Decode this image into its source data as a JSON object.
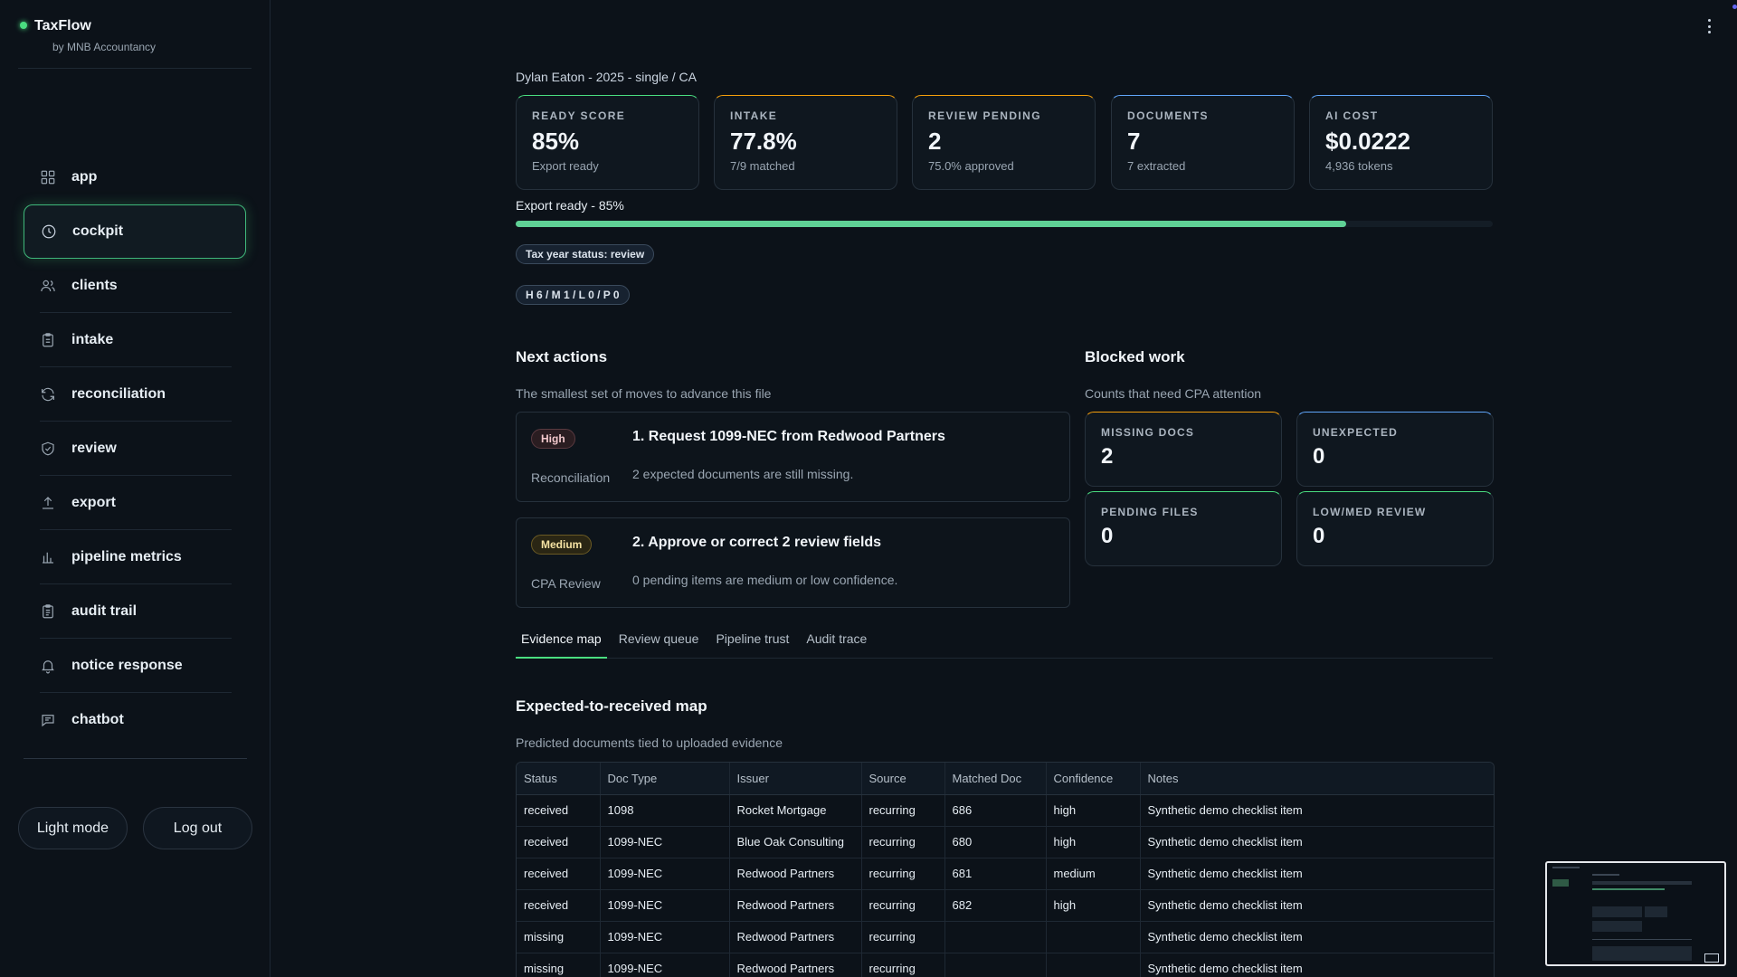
{
  "app": {
    "name": "TaxFlow",
    "subtitle": "by MNB Accountancy",
    "accent": "#4ade80"
  },
  "sidebar": {
    "items": [
      {
        "label": "app",
        "icon": "grid-icon",
        "active": false
      },
      {
        "label": "cockpit",
        "icon": "clock-icon",
        "active": true
      },
      {
        "label": "clients",
        "icon": "users-icon",
        "active": false
      },
      {
        "label": "intake",
        "icon": "clipboard-icon",
        "active": false
      },
      {
        "label": "reconciliation",
        "icon": "refresh-icon",
        "active": false
      },
      {
        "label": "review",
        "icon": "shield-check-icon",
        "active": false
      },
      {
        "label": "export",
        "icon": "upload-icon",
        "active": false
      },
      {
        "label": "pipeline metrics",
        "icon": "bar-chart-icon",
        "active": false
      },
      {
        "label": "audit trail",
        "icon": "clipboard-list-icon",
        "active": false
      },
      {
        "label": "notice response",
        "icon": "bell-icon",
        "active": false
      },
      {
        "label": "chatbot",
        "icon": "message-icon",
        "active": false
      }
    ],
    "light_mode_label": "Light mode",
    "logout_label": "Log out"
  },
  "header": {
    "client_line": "Dylan Eaton - 2025 - single / CA"
  },
  "stats": [
    {
      "label": "READY SCORE",
      "value": "85%",
      "sub": "Export ready",
      "accent": "#4ade80"
    },
    {
      "label": "INTAKE",
      "value": "77.8%",
      "sub": "7/9 matched",
      "accent": "#f59e0b"
    },
    {
      "label": "REVIEW PENDING",
      "value": "2",
      "sub": "75.0% approved",
      "accent": "#f59e0b"
    },
    {
      "label": "DOCUMENTS",
      "value": "7",
      "sub": "7 extracted",
      "accent": "#60a5fa"
    },
    {
      "label": "AI COST",
      "value": "$0.0222",
      "sub": "4,936 tokens",
      "accent": "#60a5fa"
    }
  ],
  "progress": {
    "label": "Export ready - 85%",
    "fraction": 0.85,
    "color": "#5fd195"
  },
  "badges": {
    "tax_year_status": "Tax year status: review",
    "counts": "H 6 / M 1 / L 0 / P 0"
  },
  "next_actions": {
    "title": "Next actions",
    "subtitle": "The smallest set of moves to advance this file",
    "items": [
      {
        "priority": "High",
        "category": "Reconciliation",
        "title": "1. Request 1099-NEC from Redwood Partners",
        "description": "2 expected documents are still missing."
      },
      {
        "priority": "Medium",
        "category": "CPA Review",
        "title": "2. Approve or correct 2 review fields",
        "description": "0 pending items are medium or low confidence."
      }
    ]
  },
  "blocked_work": {
    "title": "Blocked work",
    "subtitle": "Counts that need CPA attention",
    "cards": [
      {
        "label": "MISSING DOCS",
        "value": "2",
        "accent": "#f59e0b"
      },
      {
        "label": "UNEXPECTED",
        "value": "0",
        "accent": "#60a5fa"
      },
      {
        "label": "PENDING FILES",
        "value": "0",
        "accent": "#4ade80"
      },
      {
        "label": "LOW/MED REVIEW",
        "value": "0",
        "accent": "#4ade80"
      }
    ]
  },
  "tabs": [
    {
      "label": "Evidence map",
      "active": true
    },
    {
      "label": "Review queue",
      "active": false
    },
    {
      "label": "Pipeline trust",
      "active": false
    },
    {
      "label": "Audit trace",
      "active": false
    }
  ],
  "evidence_map": {
    "title": "Expected-to-received map",
    "subtitle": "Predicted documents tied to uploaded evidence",
    "columns": [
      "Status",
      "Doc Type",
      "Issuer",
      "Source",
      "Matched Doc",
      "Confidence",
      "Notes"
    ],
    "rows": [
      [
        "received",
        "1098",
        "Rocket Mortgage",
        "recurring",
        "686",
        "high",
        "Synthetic demo checklist item"
      ],
      [
        "received",
        "1099-NEC",
        "Blue Oak Consulting",
        "recurring",
        "680",
        "high",
        "Synthetic demo checklist item"
      ],
      [
        "received",
        "1099-NEC",
        "Redwood Partners",
        "recurring",
        "681",
        "medium",
        "Synthetic demo checklist item"
      ],
      [
        "received",
        "1099-NEC",
        "Redwood Partners",
        "recurring",
        "682",
        "high",
        "Synthetic demo checklist item"
      ],
      [
        "missing",
        "1099-NEC",
        "Redwood Partners",
        "recurring",
        "",
        "",
        "Synthetic demo checklist item"
      ],
      [
        "missing",
        "1099-NEC",
        "Redwood Partners",
        "recurring",
        "",
        "",
        "Synthetic demo checklist item"
      ]
    ]
  }
}
